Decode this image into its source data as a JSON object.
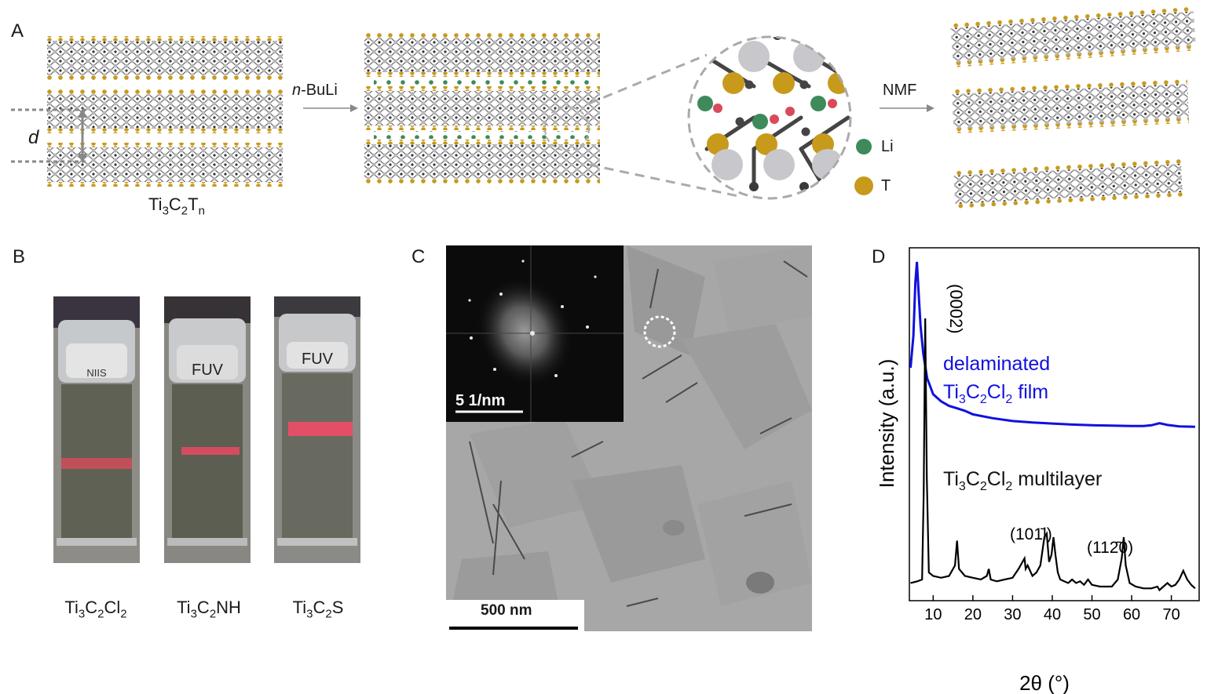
{
  "panels": {
    "a": "A",
    "b": "B",
    "c": "C",
    "d": "D"
  },
  "panel_a": {
    "d_label": "d",
    "formula_main": "Ti",
    "formula_sub1": "3",
    "formula_c": "C",
    "formula_sub2": "2",
    "formula_t": "T",
    "formula_sub3": "n",
    "step1_italic": "n",
    "step1_rest": "-BuLi",
    "step2": "NMF",
    "legend_li": "Li",
    "legend_t": "T",
    "colors": {
      "li": "#3e8a5a",
      "t": "#c89a1c",
      "ti": "#c8c8cc",
      "c": "#3a3a3a",
      "li_plus": "#d94a5a"
    }
  },
  "panel_b": {
    "vial1": {
      "top_text": "NIIS",
      "label_pre": "Ti",
      "s1": "3",
      "mid": "C",
      "s2": "2",
      "post": "Cl",
      "s3": "2"
    },
    "vial2": {
      "top_text": "FUV",
      "label_pre": "Ti",
      "s1": "3",
      "mid": "C",
      "s2": "2",
      "post": "NH",
      "s3": ""
    },
    "vial3": {
      "top_text": "FUV",
      "label_pre": "Ti",
      "s1": "3",
      "mid": "C",
      "s2": "2",
      "post": "S",
      "s3": ""
    }
  },
  "panel_c": {
    "inset_scale": "5 1/nm",
    "main_scale": "500 nm"
  },
  "chart_data": {
    "type": "line",
    "xlabel": "2θ (°)",
    "ylabel": "Intensity (a.u.)",
    "xlim": [
      4,
      77
    ],
    "xticks": [
      10,
      20,
      30,
      40,
      50,
      60,
      70
    ],
    "series": [
      {
        "name": "delaminated Ti3C2Cl2 film",
        "color": "#1010e0",
        "x": [
          4.3,
          5.0,
          5.5,
          5.9,
          6.3,
          6.8,
          7.5,
          8.5,
          10,
          12,
          14,
          16,
          18,
          20,
          25,
          30,
          35,
          40,
          45,
          50,
          55,
          60,
          63,
          65,
          67,
          69,
          72,
          76
        ],
        "y": [
          0.66,
          0.75,
          0.9,
          0.96,
          0.88,
          0.78,
          0.7,
          0.63,
          0.585,
          0.565,
          0.552,
          0.545,
          0.538,
          0.528,
          0.517,
          0.509,
          0.505,
          0.502,
          0.499,
          0.497,
          0.496,
          0.495,
          0.495,
          0.497,
          0.503,
          0.498,
          0.494,
          0.493
        ]
      },
      {
        "name": "Ti3C2Cl2 multilayer",
        "color": "#000000",
        "x": [
          4.3,
          6.0,
          7.2,
          7.6,
          8.0,
          8.4,
          8.9,
          10,
          12,
          14,
          15.5,
          16,
          16.5,
          18,
          20,
          22,
          23.5,
          24,
          24.5,
          26,
          28,
          30,
          31.5,
          32.5,
          33,
          33.3,
          33.8,
          35,
          36,
          37,
          38,
          38.6,
          39.2,
          39.8,
          40.3,
          40.8,
          41.4,
          42,
          43,
          44,
          45,
          46,
          47,
          48,
          49,
          50,
          52,
          55,
          56.5,
          57.5,
          58,
          58.5,
          59.5,
          61,
          63,
          65,
          66.5,
          67,
          68,
          69,
          70,
          71,
          72,
          73,
          74,
          75,
          76
        ],
        "y": [
          0.05,
          0.055,
          0.06,
          0.3,
          0.8,
          0.35,
          0.08,
          0.07,
          0.065,
          0.07,
          0.1,
          0.17,
          0.09,
          0.07,
          0.065,
          0.06,
          0.07,
          0.09,
          0.06,
          0.055,
          0.06,
          0.065,
          0.09,
          0.11,
          0.12,
          0.09,
          0.1,
          0.07,
          0.08,
          0.1,
          0.18,
          0.19,
          0.11,
          0.13,
          0.18,
          0.13,
          0.08,
          0.06,
          0.055,
          0.05,
          0.06,
          0.05,
          0.055,
          0.045,
          0.06,
          0.045,
          0.04,
          0.04,
          0.06,
          0.12,
          0.18,
          0.1,
          0.05,
          0.04,
          0.035,
          0.035,
          0.04,
          0.03,
          0.04,
          0.05,
          0.04,
          0.045,
          0.06,
          0.085,
          0.06,
          0.045,
          0.035
        ]
      }
    ],
    "annotations": [
      {
        "text": "(0002)"
      },
      {
        "text": "(101̄l)"
      },
      {
        "text": "(112̄0)"
      }
    ],
    "legend_film_line1": "delaminated",
    "legend_film_pre": "Ti",
    "legend_film_s1": "3",
    "legend_film_mid": "C",
    "legend_film_s2": "2",
    "legend_film_post": "Cl",
    "legend_film_s3": "2",
    "legend_film_end": " film",
    "legend_ml_pre": "Ti",
    "legend_ml_s1": "3",
    "legend_ml_mid": "C",
    "legend_ml_s2": "2",
    "legend_ml_post": "Cl",
    "legend_ml_s3": "2",
    "legend_ml_end": " multilayer"
  }
}
